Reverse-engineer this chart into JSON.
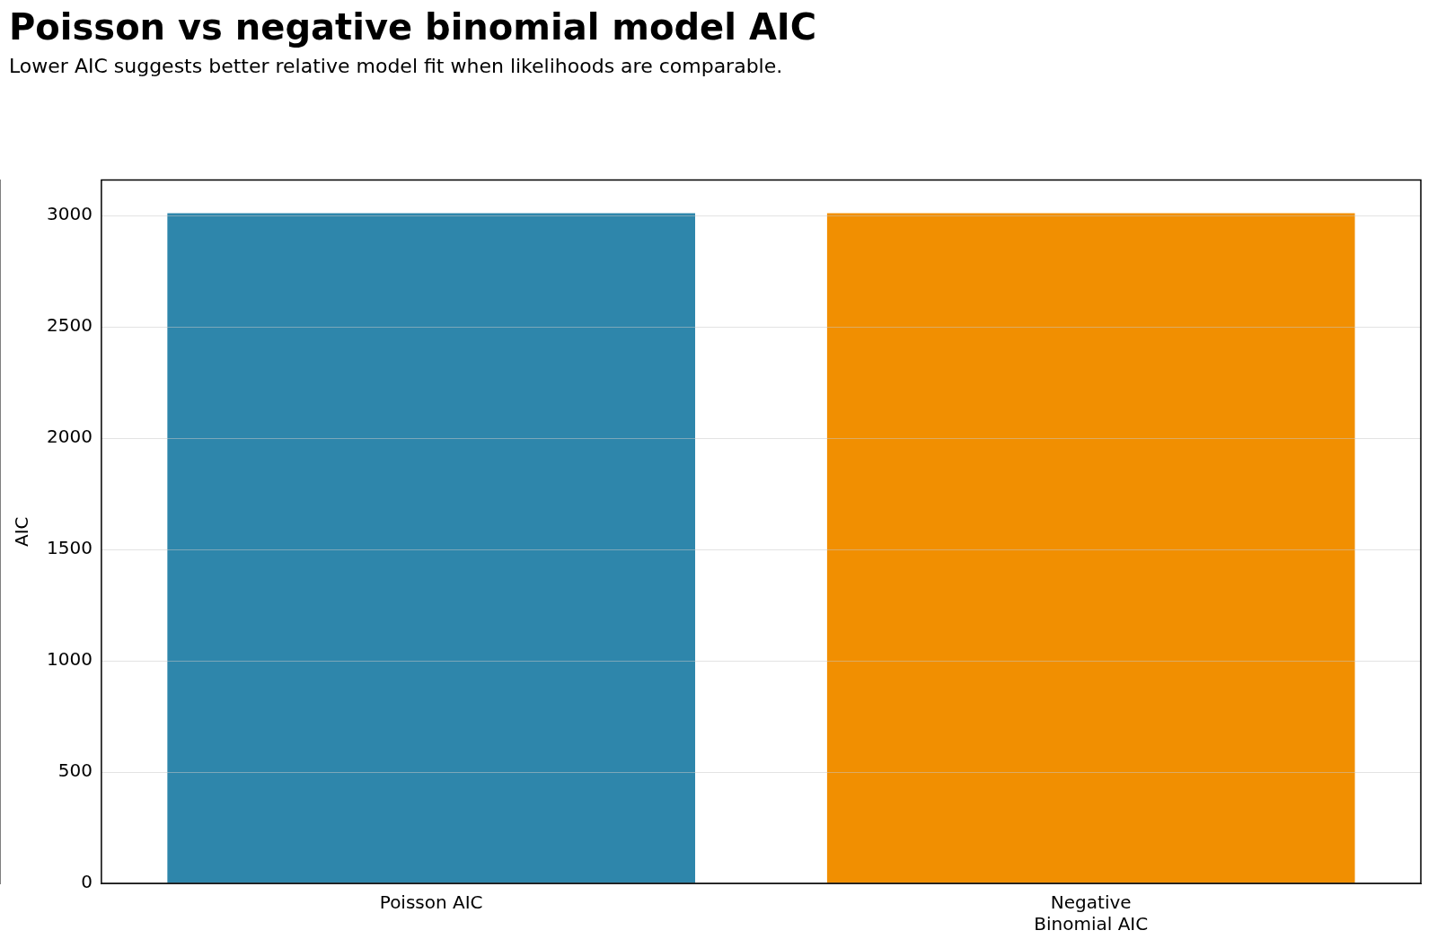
{
  "chart_data": {
    "type": "bar",
    "title": "Poisson vs negative binomial model AIC",
    "subtitle": "Lower AIC suggests better relative model fit when likelihoods are comparable.",
    "ylabel": "AIC",
    "categories": [
      "Poisson AIC",
      "Negative\nBinomial AIC"
    ],
    "values": [
      3010,
      3010
    ],
    "colors": [
      "#2e86ab",
      "#f18f01"
    ],
    "ylim": [
      0,
      3160
    ],
    "yticks": [
      0,
      500,
      1000,
      1500,
      2000,
      2500,
      3000
    ],
    "grid": "y",
    "legend": false
  }
}
